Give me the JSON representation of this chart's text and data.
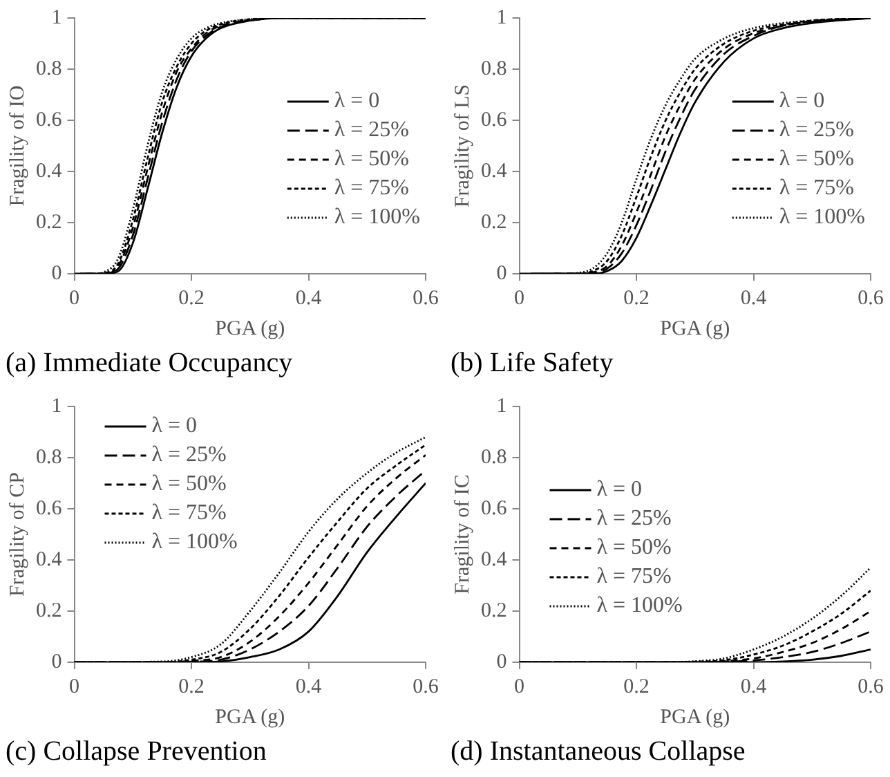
{
  "chart_data": [
    {
      "type": "line",
      "title": "(a) Immediate Occupancy",
      "xlabel": "PGA (g)",
      "ylabel": "Fragility of IO",
      "xlim": [
        0,
        0.6
      ],
      "xticks": [
        0,
        0.2,
        0.4,
        0.6
      ],
      "ylim": [
        0,
        1
      ],
      "yticks": [
        0,
        0.2,
        0.4,
        0.6,
        0.8,
        1
      ],
      "grid": false,
      "legend": "right",
      "marker": "none",
      "series": [
        {
          "name": "λ = 0",
          "color": "#000000",
          "line_style": "solid",
          "x": [
            0,
            0.05,
            0.075,
            0.1,
            0.125,
            0.15,
            0.175,
            0.2,
            0.225,
            0.25,
            0.3,
            0.35,
            0.4,
            0.5,
            0.6
          ],
          "values": [
            0,
            0,
            0.01,
            0.12,
            0.33,
            0.55,
            0.73,
            0.85,
            0.92,
            0.96,
            0.99,
            1,
            1,
            1,
            1
          ]
        },
        {
          "name": "λ = 25%",
          "color": "#000000",
          "line_style": "dashed",
          "x": [
            0.01,
            0.05,
            0.075,
            0.1,
            0.125,
            0.15,
            0.175,
            0.2,
            0.225,
            0.25,
            0.3,
            0.35,
            0.4,
            0.5,
            0.6
          ],
          "values": [
            0,
            0,
            0.02,
            0.15,
            0.37,
            0.59,
            0.76,
            0.87,
            0.93,
            0.965,
            0.99,
            1,
            1,
            1,
            1
          ]
        },
        {
          "name": "λ = 50%",
          "color": "#000000",
          "line_style": "dashed",
          "x": [
            0.02,
            0.05,
            0.075,
            0.1,
            0.125,
            0.15,
            0.175,
            0.2,
            0.225,
            0.25,
            0.3,
            0.35,
            0.4,
            0.5,
            0.6
          ],
          "values": [
            0,
            0,
            0.03,
            0.18,
            0.41,
            0.63,
            0.79,
            0.88,
            0.94,
            0.97,
            0.99,
            1,
            1,
            1,
            1
          ]
        },
        {
          "name": "λ = 75%",
          "color": "#000000",
          "line_style": "dashed",
          "x": [
            0.03,
            0.05,
            0.075,
            0.1,
            0.125,
            0.15,
            0.175,
            0.2,
            0.225,
            0.25,
            0.3,
            0.35,
            0.4,
            0.5,
            0.6
          ],
          "values": [
            0,
            0.003,
            0.04,
            0.21,
            0.45,
            0.67,
            0.81,
            0.9,
            0.95,
            0.975,
            0.995,
            1,
            1,
            1,
            1
          ]
        },
        {
          "name": "λ = 100%",
          "color": "#000000",
          "line_style": "dotted",
          "x": [
            0.04,
            0.05,
            0.075,
            0.1,
            0.125,
            0.15,
            0.175,
            0.2,
            0.225,
            0.25,
            0.3,
            0.35,
            0.4,
            0.5,
            0.6
          ],
          "values": [
            0,
            0.005,
            0.06,
            0.25,
            0.5,
            0.71,
            0.84,
            0.92,
            0.96,
            0.98,
            0.995,
            1,
            1,
            1,
            1
          ]
        }
      ]
    },
    {
      "type": "line",
      "title": "(b) Life Safety",
      "xlabel": "PGA (g)",
      "ylabel": "Fragility of LS",
      "xlim": [
        0,
        0.6
      ],
      "xticks": [
        0,
        0.2,
        0.4,
        0.6
      ],
      "ylim": [
        0,
        1
      ],
      "yticks": [
        0,
        0.2,
        0.4,
        0.6,
        0.8,
        1
      ],
      "grid": false,
      "legend": "right",
      "marker": "none",
      "series": [
        {
          "name": "λ = 0",
          "color": "#000000",
          "line_style": "solid",
          "x": [
            0,
            0.1,
            0.125,
            0.15,
            0.175,
            0.2,
            0.225,
            0.25,
            0.275,
            0.3,
            0.35,
            0.4,
            0.45,
            0.5,
            0.6
          ],
          "values": [
            0,
            0,
            0,
            0.01,
            0.05,
            0.14,
            0.27,
            0.41,
            0.55,
            0.67,
            0.83,
            0.92,
            0.96,
            0.98,
            1
          ]
        },
        {
          "name": "λ = 25%",
          "color": "#000000",
          "line_style": "dashed",
          "x": [
            0.02,
            0.1,
            0.125,
            0.15,
            0.175,
            0.2,
            0.225,
            0.25,
            0.275,
            0.3,
            0.35,
            0.4,
            0.45,
            0.5,
            0.6
          ],
          "values": [
            0,
            0,
            0.003,
            0.02,
            0.08,
            0.19,
            0.33,
            0.48,
            0.61,
            0.72,
            0.86,
            0.93,
            0.97,
            0.985,
            1
          ]
        },
        {
          "name": "λ = 50%",
          "color": "#000000",
          "line_style": "dashed",
          "x": [
            0.04,
            0.1,
            0.125,
            0.15,
            0.175,
            0.2,
            0.225,
            0.25,
            0.275,
            0.3,
            0.35,
            0.4,
            0.45,
            0.5,
            0.6
          ],
          "values": [
            0,
            0,
            0.005,
            0.03,
            0.11,
            0.24,
            0.39,
            0.54,
            0.66,
            0.76,
            0.88,
            0.94,
            0.97,
            0.988,
            1
          ]
        },
        {
          "name": "λ = 75%",
          "color": "#000000",
          "line_style": "dashed",
          "x": [
            0.06,
            0.1,
            0.125,
            0.15,
            0.175,
            0.2,
            0.225,
            0.25,
            0.275,
            0.3,
            0.35,
            0.4,
            0.45,
            0.5,
            0.6
          ],
          "values": [
            0,
            0,
            0.01,
            0.05,
            0.15,
            0.3,
            0.46,
            0.6,
            0.71,
            0.8,
            0.9,
            0.95,
            0.975,
            0.99,
            1
          ]
        },
        {
          "name": "λ = 100%",
          "color": "#000000",
          "line_style": "dotted",
          "x": [
            0.08,
            0.1,
            0.125,
            0.15,
            0.175,
            0.2,
            0.225,
            0.25,
            0.275,
            0.3,
            0.35,
            0.4,
            0.45,
            0.5,
            0.6
          ],
          "values": [
            0,
            0.003,
            0.02,
            0.08,
            0.2,
            0.37,
            0.53,
            0.66,
            0.76,
            0.84,
            0.92,
            0.96,
            0.98,
            0.99,
            1
          ]
        }
      ]
    },
    {
      "type": "line",
      "title": "(c) Collapse Prevention",
      "xlabel": "PGA (g)",
      "ylabel": "Fragility of CP",
      "x": [
        0,
        0.15,
        0.2,
        0.25,
        0.3,
        0.35,
        0.4,
        0.45,
        0.5,
        0.55,
        0.6
      ],
      "xlim": [
        0,
        0.6
      ],
      "xticks": [
        0,
        0.2,
        0.4,
        0.6
      ],
      "ylim": [
        0,
        1
      ],
      "yticks": [
        0,
        0.2,
        0.4,
        0.6,
        0.8,
        1
      ],
      "grid": false,
      "legend": "top left",
      "marker": "none",
      "series": [
        {
          "name": "λ = 0",
          "color": "#000000",
          "line_style": "solid",
          "values": [
            0,
            0,
            0,
            0.003,
            0.02,
            0.05,
            0.12,
            0.26,
            0.43,
            0.57,
            0.7
          ]
        },
        {
          "name": "λ = 25%",
          "color": "#000000",
          "line_style": "dashed",
          "values": [
            0,
            0,
            0.002,
            0.01,
            0.05,
            0.12,
            0.22,
            0.37,
            0.53,
            0.65,
            0.75
          ]
        },
        {
          "name": "λ = 50%",
          "color": "#000000",
          "line_style": "dashed",
          "values": [
            0,
            0,
            0.005,
            0.02,
            0.08,
            0.18,
            0.31,
            0.46,
            0.61,
            0.72,
            0.81
          ]
        },
        {
          "name": "λ = 75%",
          "color": "#000000",
          "line_style": "dashed",
          "values": [
            0,
            0,
            0.01,
            0.04,
            0.13,
            0.26,
            0.41,
            0.55,
            0.68,
            0.77,
            0.85
          ]
        },
        {
          "name": "λ = 100%",
          "color": "#000000",
          "line_style": "dotted",
          "values": [
            0,
            0.003,
            0.02,
            0.07,
            0.2,
            0.35,
            0.51,
            0.64,
            0.74,
            0.82,
            0.88
          ]
        }
      ]
    },
    {
      "type": "line",
      "title": "(d) Instantaneous Collapse",
      "xlabel": "PGA (g)",
      "ylabel": "Fragility of IC",
      "x": [
        0,
        0.25,
        0.3,
        0.35,
        0.4,
        0.45,
        0.5,
        0.55,
        0.6
      ],
      "xlim": [
        0,
        0.6
      ],
      "xticks": [
        0,
        0.2,
        0.4,
        0.6
      ],
      "ylim": [
        0,
        1
      ],
      "yticks": [
        0,
        0.2,
        0.4,
        0.6,
        0.8,
        1
      ],
      "grid": false,
      "legend": "left",
      "marker": "none",
      "series": [
        {
          "name": "λ = 0",
          "color": "#000000",
          "line_style": "solid",
          "values": [
            0,
            0,
            0,
            0,
            0,
            0.003,
            0.01,
            0.025,
            0.05
          ]
        },
        {
          "name": "λ = 25%",
          "color": "#000000",
          "line_style": "dashed",
          "values": [
            0,
            0,
            0,
            0.002,
            0.007,
            0.02,
            0.04,
            0.075,
            0.12
          ]
        },
        {
          "name": "λ = 50%",
          "color": "#000000",
          "line_style": "dashed",
          "values": [
            0,
            0,
            0,
            0.004,
            0.015,
            0.04,
            0.075,
            0.13,
            0.2
          ]
        },
        {
          "name": "λ = 75%",
          "color": "#000000",
          "line_style": "dashed",
          "values": [
            0,
            0,
            0.002,
            0.008,
            0.03,
            0.065,
            0.12,
            0.19,
            0.28
          ]
        },
        {
          "name": "λ = 100%",
          "color": "#000000",
          "line_style": "dotted",
          "values": [
            0,
            0,
            0.004,
            0.015,
            0.05,
            0.1,
            0.17,
            0.26,
            0.37
          ]
        }
      ]
    }
  ]
}
